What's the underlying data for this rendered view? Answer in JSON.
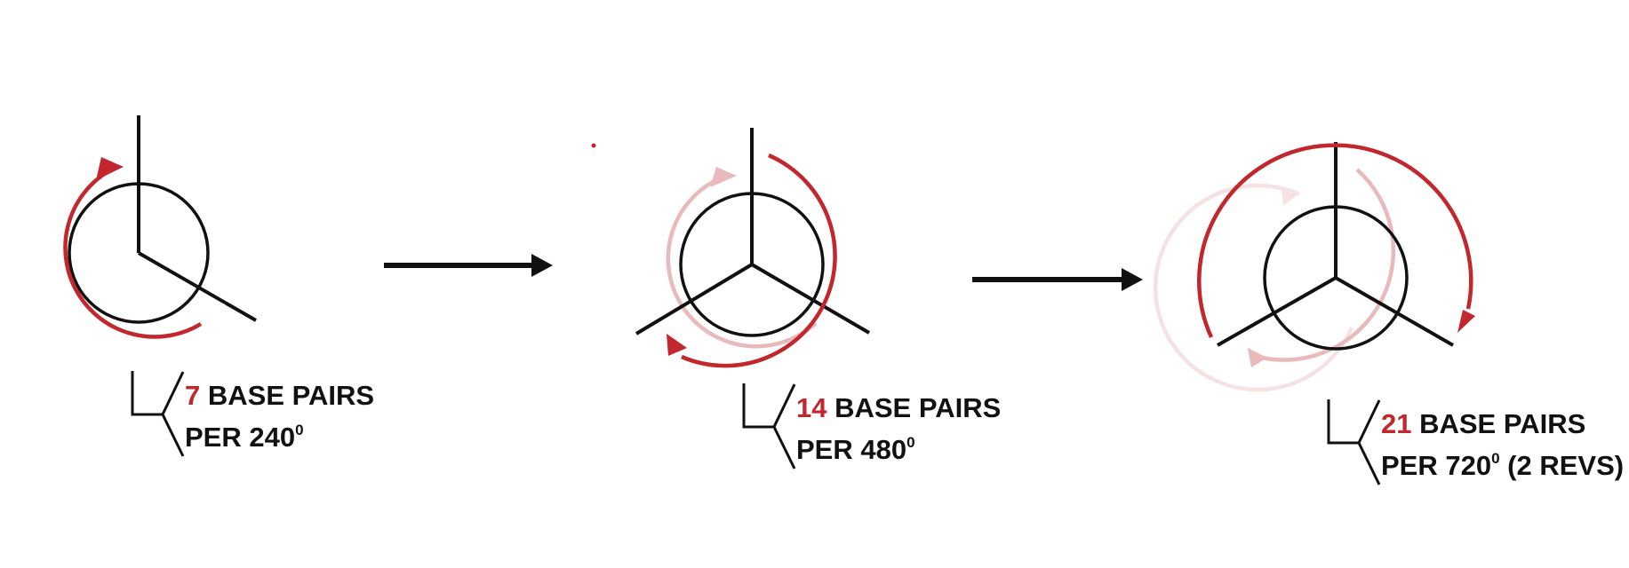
{
  "colors": {
    "accent": "#c1272d",
    "accent_faded": "#e9b9bb",
    "accent_faint": "#f6e2e3",
    "ink": "#111111"
  },
  "panels": [
    {
      "count": "7",
      "line1_rest": "BASE PAIRS",
      "line2_prefix": "PER 240",
      "degree": "0",
      "line2_suffix": ""
    },
    {
      "count": "14",
      "line1_rest": "BASE PAIRS",
      "line2_prefix": "PER 480",
      "degree": "0",
      "line2_suffix": ""
    },
    {
      "count": "21",
      "line1_rest": "BASE PAIRS",
      "line2_prefix": "PER 720",
      "degree": "0",
      "line2_suffix": " (2 REVS)"
    }
  ]
}
